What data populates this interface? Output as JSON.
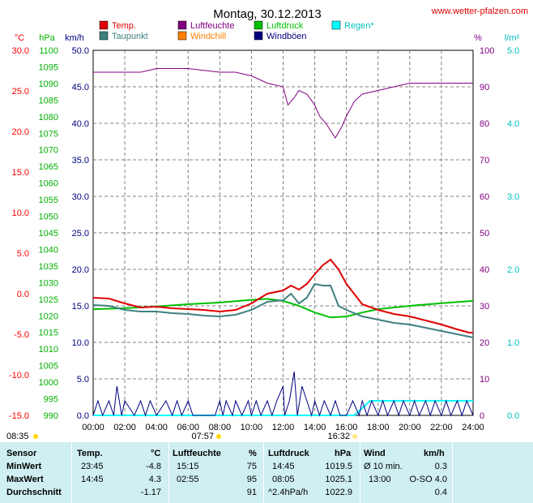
{
  "source": "www.wetter-pfalzen.com",
  "chart_data": {
    "type": "line",
    "title": "Montag, 30.12.2013",
    "x_ticks": [
      "00:00",
      "02:00",
      "04:00",
      "06:00",
      "08:00",
      "10:00",
      "12:00",
      "14:00",
      "16:00",
      "18:00",
      "20:00",
      "22:00",
      "24:00"
    ],
    "axes": {
      "temp": {
        "unit": "°C",
        "color": "#ff0000",
        "range": [
          -15,
          30
        ],
        "ticks": [
          "30.0",
          "25.0",
          "20.0",
          "15.0",
          "10.0",
          "5.0",
          "0.0",
          "-5.0",
          "-10.0",
          "-15.0"
        ]
      },
      "hpa": {
        "unit": "hPa",
        "color": "#00b000",
        "range": [
          990,
          1100
        ],
        "ticks": [
          "1100",
          "1095",
          "1090",
          "1085",
          "1080",
          "1075",
          "1070",
          "1065",
          "1060",
          "1055",
          "1050",
          "1045",
          "1040",
          "1035",
          "1030",
          "1025",
          "1020",
          "1015",
          "1010",
          "1005",
          "1000",
          "995",
          "990"
        ]
      },
      "kmh": {
        "unit": "km/h",
        "color": "#000080",
        "range": [
          0,
          50
        ],
        "ticks": [
          "50.0",
          "45.0",
          "40.0",
          "35.0",
          "30.0",
          "25.0",
          "20.0",
          "15.0",
          "10.0",
          "5.0",
          "0.0"
        ]
      },
      "pct": {
        "unit": "%",
        "color": "#800080",
        "range": [
          0,
          100
        ],
        "ticks": [
          "100",
          "90",
          "80",
          "70",
          "60",
          "50",
          "40",
          "30",
          "20",
          "10",
          "0"
        ]
      },
      "rain": {
        "unit": "l/m²",
        "color": "#00c0c0",
        "range": [
          0,
          5
        ],
        "ticks": [
          "5.0",
          "4.0",
          "3.0",
          "2.0",
          "1.0",
          "0.0"
        ]
      }
    },
    "legend": [
      {
        "name": "Temp.",
        "color": "#e00000"
      },
      {
        "name": "Taupunkt",
        "color": "#408080"
      },
      {
        "name": "Luftfeuchte",
        "color": "#800080"
      },
      {
        "name": "Windchill",
        "color": "#ff8000"
      },
      {
        "name": "Luftdruck",
        "color": "#00c000"
      },
      {
        "name": "Windböen",
        "color": "#000080"
      },
      {
        "name": "Regen*",
        "color": "#00ffff"
      }
    ],
    "series": [
      {
        "name": "Temp.",
        "axis": "temp",
        "color": "#e00000",
        "x": [
          0,
          1,
          2,
          3,
          4,
          5,
          6,
          7,
          8,
          9,
          10,
          11,
          12,
          12.5,
          13,
          13.5,
          14,
          14.5,
          15,
          15.5,
          16,
          17,
          18,
          19,
          20,
          21,
          22,
          23,
          23.75,
          24
        ],
        "y": [
          -0.5,
          -0.6,
          -1.2,
          -1.7,
          -1.6,
          -1.8,
          -1.9,
          -2.0,
          -2.2,
          -2.0,
          -1.2,
          0.0,
          0.4,
          1.0,
          0.5,
          1.2,
          2.4,
          3.5,
          4.2,
          3.0,
          1.2,
          -1.3,
          -2.0,
          -2.5,
          -2.8,
          -3.3,
          -3.8,
          -4.4,
          -4.8,
          -4.8
        ]
      },
      {
        "name": "Taupunkt",
        "axis": "temp",
        "color": "#408080",
        "x": [
          0,
          1,
          2,
          3,
          4,
          5,
          6,
          7,
          8,
          9,
          10,
          11,
          12,
          12.5,
          13,
          13.5,
          14,
          14.5,
          15,
          15.5,
          16,
          17,
          18,
          19,
          20,
          21,
          22,
          23,
          24
        ],
        "y": [
          -1.4,
          -1.5,
          -2.0,
          -2.2,
          -2.2,
          -2.4,
          -2.5,
          -2.7,
          -2.8,
          -2.6,
          -2.0,
          -1.0,
          -0.8,
          0.0,
          -1.2,
          -0.5,
          1.2,
          1.0,
          1.0,
          -1.5,
          -2.0,
          -2.8,
          -3.2,
          -3.6,
          -3.8,
          -4.2,
          -4.6,
          -5.0,
          -5.4
        ]
      },
      {
        "name": "Luftfeuchte",
        "axis": "pct",
        "color": "#800080",
        "x": [
          0,
          3,
          4,
          5,
          6,
          8,
          9,
          10,
          11,
          12,
          12.3,
          12.7,
          13,
          13.5,
          14,
          14.3,
          14.7,
          15,
          15.3,
          15.7,
          16,
          16.5,
          17,
          18,
          19,
          20,
          21,
          22,
          23,
          24
        ],
        "y": [
          94,
          94,
          95,
          95,
          95,
          94,
          94,
          93,
          91,
          90,
          85,
          87,
          89,
          88,
          85,
          82,
          80,
          78,
          76,
          79,
          82,
          86,
          88,
          89,
          90,
          91,
          91,
          91,
          91,
          91
        ]
      },
      {
        "name": "Luftdruck",
        "axis": "hpa",
        "color": "#00c000",
        "x": [
          0,
          2,
          4,
          6,
          8,
          10,
          11,
          12,
          13,
          14,
          15,
          16,
          17,
          18,
          20,
          22,
          24
        ],
        "y": [
          1022.0,
          1022.3,
          1022.8,
          1023.5,
          1024.0,
          1024.8,
          1025.1,
          1024.5,
          1023.0,
          1021.0,
          1019.5,
          1019.8,
          1021.0,
          1022.0,
          1023.0,
          1023.8,
          1024.5
        ]
      },
      {
        "name": "Windböen",
        "axis": "kmh",
        "color": "#000080",
        "x": [
          0,
          0.3,
          0.6,
          1,
          1.3,
          1.5,
          1.8,
          2,
          2.6,
          3,
          3.3,
          3.6,
          4,
          4.6,
          5,
          5.3,
          5.6,
          6,
          6.3,
          7,
          7.7,
          8,
          8.2,
          8.4,
          8.8,
          9,
          9.4,
          9.8,
          10,
          10.3,
          10.6,
          11,
          11.3,
          11.6,
          12,
          12.1,
          12.4,
          12.7,
          12.9,
          13.2,
          13.5,
          13.8,
          14,
          14.3,
          14.6,
          15,
          15.3,
          15.6,
          16,
          16.4,
          16.8,
          17,
          17.3,
          17.6,
          18,
          18.3,
          18.6,
          19,
          19.3,
          19.6,
          20,
          20.3,
          20.6,
          21,
          21.3,
          21.6,
          22,
          22.3,
          22.6,
          23,
          23.3,
          23.6,
          24
        ],
        "y": [
          0,
          2,
          0,
          2,
          0,
          4,
          0,
          2,
          0,
          2,
          0,
          2,
          0,
          2,
          0,
          2,
          0,
          2,
          0,
          0,
          0,
          2,
          0,
          2,
          0,
          2,
          0,
          2,
          0,
          2,
          0,
          2,
          0,
          2,
          4,
          0,
          2,
          6,
          0,
          4,
          2,
          0,
          2,
          0,
          2,
          0,
          2,
          0,
          0,
          2,
          0,
          2,
          0,
          2,
          0,
          2,
          0,
          2,
          0,
          2,
          0,
          2,
          0,
          2,
          0,
          2,
          0,
          2,
          0,
          2,
          0,
          2,
          0
        ]
      },
      {
        "name": "Regen*",
        "axis": "rain",
        "color": "#00ffff",
        "x": [
          0,
          16.5,
          17.5,
          18,
          24
        ],
        "y": [
          0,
          0,
          0.2,
          0.2,
          0.2
        ]
      }
    ],
    "sun_times": {
      "rise": "08:35",
      "set": "16:32",
      "tick_left": "07:57"
    }
  },
  "table": {
    "headers": {
      "sensor": "Sensor",
      "temp": "Temp.",
      "temp_unit": "°C",
      "hum": "Luftfeuchte",
      "hum_unit": "%",
      "press": "Luftdruck",
      "press_unit": "hPa",
      "wind": "Wind",
      "wind_unit": "km/h"
    },
    "rows": [
      {
        "label": "MinWert",
        "t_time": "23:45",
        "t_val": "-4.8",
        "h_time": "15:15",
        "h_val": "75",
        "p_time": "14:45",
        "p_val": "1019.5",
        "w_time": "Ø 10 min.",
        "w_val": "0.3"
      },
      {
        "label": "MaxWert",
        "t_time": "14:45",
        "t_val": "4.3",
        "h_time": "02:55",
        "h_val": "95",
        "p_time": "08:05",
        "p_val": "1025.1",
        "w_time": "13:00",
        "w_val": "O-SO 4.0"
      },
      {
        "label": "Durchschnitt",
        "t_time": "",
        "t_val": "-1.17",
        "h_time": "",
        "h_val": "91",
        "p_time": "^2.4hPa/h",
        "p_val": "1022.9",
        "w_time": "",
        "w_val": "0.4"
      }
    ]
  }
}
